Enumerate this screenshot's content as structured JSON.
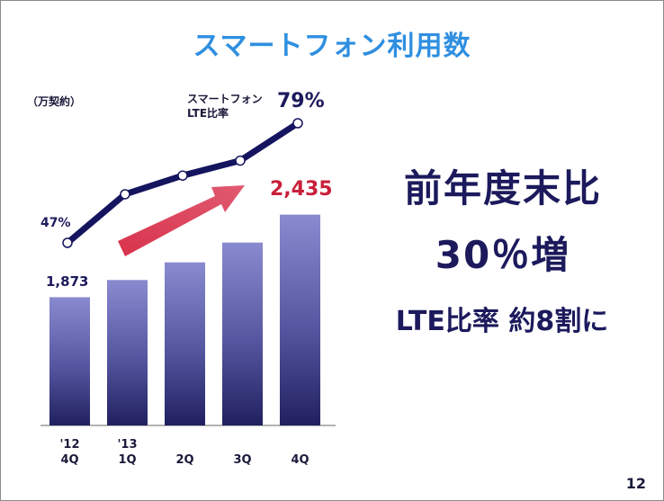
{
  "title": "スマートフォン利用数",
  "unit_label": "（万契約）",
  "lte_label_line1": "スマートフォン",
  "lte_label_line2": "LTE比率",
  "page_number": "12",
  "message": {
    "line1": "前年度末比",
    "line2": "30％増",
    "line3": "LTE比率 約8割に"
  },
  "chart_data": {
    "type": "bar",
    "categories": [
      [
        "'12",
        "4Q"
      ],
      [
        "'13",
        "1Q"
      ],
      [
        "",
        "2Q"
      ],
      [
        "",
        "3Q"
      ],
      [
        "",
        "4Q"
      ]
    ],
    "series": [
      {
        "name": "",
        "type": "bar",
        "values": [
          1873,
          1990,
          2110,
          2245,
          2435
        ],
        "labels": [
          "1,873",
          "",
          "",
          "",
          "2,435"
        ],
        "color": "#3d3d8f"
      },
      {
        "name": "スマートフォン LTE比率",
        "type": "line",
        "unit": "%",
        "values": [
          47,
          60,
          65,
          69,
          79
        ],
        "labels": [
          "47%",
          "",
          "",
          "",
          "79%"
        ],
        "color": "#15145e"
      }
    ],
    "ylim": [
      1000,
      2500
    ],
    "line_ylim": [
      30,
      100
    ],
    "grid": false,
    "accent_arrow_color": "#d9334d"
  }
}
